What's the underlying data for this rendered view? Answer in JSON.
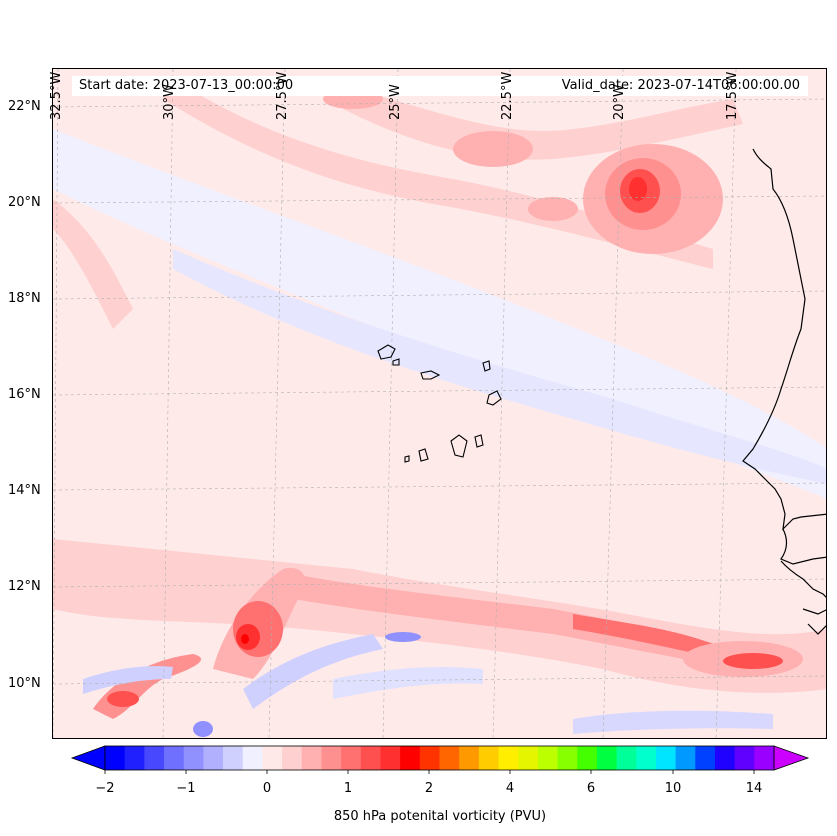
{
  "map": {
    "region": "Cape Verde and west African coast",
    "projection": "Mercator",
    "extent": {
      "lon": [
        -32.7,
        -15.0
      ],
      "lat": [
        8.9,
        22.8
      ]
    },
    "gridlines": true,
    "lon_ticks": [
      {
        "value": -32.5,
        "label": "32.5°W"
      },
      {
        "value": -30.0,
        "label": "30°W"
      },
      {
        "value": -27.5,
        "label": "27.5°W"
      },
      {
        "value": -25.0,
        "label": "25°W"
      },
      {
        "value": -22.5,
        "label": "22.5°W"
      },
      {
        "value": -20.0,
        "label": "20°W"
      },
      {
        "value": -17.5,
        "label": "17.5°W"
      }
    ],
    "lat_ticks": [
      {
        "value": 22,
        "label": "22°N"
      },
      {
        "value": 20,
        "label": "20°N"
      },
      {
        "value": 18,
        "label": "18°N"
      },
      {
        "value": 16,
        "label": "16°N"
      },
      {
        "value": 14,
        "label": "14°N"
      },
      {
        "value": 12,
        "label": "12°N"
      },
      {
        "value": 10,
        "label": "10°N"
      }
    ]
  },
  "header": {
    "start_date": "Start date: 2023-07-13_00:00:00",
    "valid_date": "Valid_date: 2023-07-14T06:00:00.00"
  },
  "colorbar": {
    "label": "850 hPa potenital vorticity (PVU)",
    "orientation": "horizontal",
    "extend": "both",
    "colors": [
      "#0000ff",
      "#2020ff",
      "#4848ff",
      "#7070ff",
      "#9090ff",
      "#b0b0ff",
      "#d0d0ff",
      "#f0f0ff",
      "#ffe8e8",
      "#ffd0d0",
      "#ffb0b0",
      "#ff9090",
      "#ff7070",
      "#ff5050",
      "#ff3030",
      "#ff0000",
      "#ff3300",
      "#ff6600",
      "#ff9900",
      "#ffcc00",
      "#ffee00",
      "#e5f500",
      "#bbff00",
      "#88ff00",
      "#44ff00",
      "#00ff40",
      "#00ff99",
      "#00ffcc",
      "#00e5ff",
      "#0099ff",
      "#0040ff",
      "#2000ff",
      "#6000ff",
      "#9900ff"
    ],
    "under_color": "#0000ff",
    "over_color": "#cc00ff",
    "ticks": [
      "−2",
      "−1",
      "0",
      "1",
      "2",
      "4",
      "6",
      "10",
      "14"
    ]
  },
  "field": {
    "anomalies_note": "",
    "features": [
      {
        "lon": -20.0,
        "lat": 20.3,
        "peak_pvu": 2.0
      },
      {
        "lon": -28.2,
        "lat": 10.9,
        "peak_pvu": 2.0
      },
      {
        "lon": -30.8,
        "lat": 9.7,
        "peak_pvu": 1.5
      },
      {
        "lon": -16.0,
        "lat": 10.4,
        "peak_pvu": 1.5
      }
    ]
  }
}
